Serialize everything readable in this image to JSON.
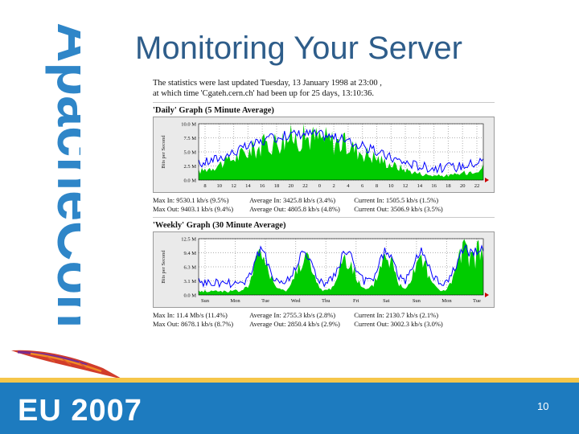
{
  "slide": {
    "title": "Monitoring Your Server",
    "page_number": "10",
    "logo_text": "ApacheCon",
    "event_text": "EU 2007"
  },
  "mrtg": {
    "updated_line": "The statistics were last updated Tuesday, 13 January 1998 at 23:00 ,",
    "uptime_line": "at which time 'Cgateh.cern.ch' had been up for 25 days, 13:10:36.",
    "daily": {
      "title": "'Daily' Graph (5 Minute Average)",
      "y_axis_label": "Bits per Second",
      "y_ticks": [
        "10.0 M",
        "7.5 M",
        "5.0 M",
        "2.5 M",
        "0.0 M"
      ],
      "x_ticks": [
        "8",
        "10",
        "12",
        "14",
        "16",
        "18",
        "20",
        "22",
        "0",
        "2",
        "4",
        "6",
        "8",
        "10",
        "12",
        "14",
        "16",
        "18",
        "20",
        "22"
      ],
      "stats": {
        "max_in": "Max In: 9530.1 kb/s (9.5%)",
        "avg_in": "Average In: 3425.8 kb/s (3.4%)",
        "cur_in": "Current In: 1505.5 kb/s (1.5%)",
        "max_out": "Max Out: 9403.1 kb/s (9.4%)",
        "avg_out": "Average Out: 4805.8 kb/s (4.8%)",
        "cur_out": "Current Out: 3506.9 kb/s (3.5%)"
      }
    },
    "weekly": {
      "title": "'Weekly' Graph (30 Minute Average)",
      "y_axis_label": "Bits per Second",
      "y_ticks": [
        "12.5 M",
        "9.4 M",
        "6.3 M",
        "3.1 M",
        "0.0 M"
      ],
      "x_ticks": [
        "Sun",
        "Mon",
        "Tue",
        "Wed",
        "Thu",
        "Fri",
        "Sat",
        "Sun",
        "Mon",
        "Tue"
      ],
      "stats": {
        "max_in": "Max In: 11.4 Mb/s (11.4%)",
        "avg_in": "Average In: 2755.3 kb/s (2.8%)",
        "cur_in": "Current In: 2130.7 kb/s (2.1%)",
        "max_out": "Max Out: 8678.1 kb/s (8.7%)",
        "avg_out": "Average Out: 2850.4 kb/s (2.9%)",
        "cur_out": "Current Out: 3002.3 kb/s (3.0%)"
      }
    }
  },
  "colors": {
    "title": "#2e5d8a",
    "footer": "#1d7bbf",
    "accent_stripe": "#f5c64a",
    "traffic_in": "#00cc00",
    "traffic_out": "#0000ff"
  }
}
